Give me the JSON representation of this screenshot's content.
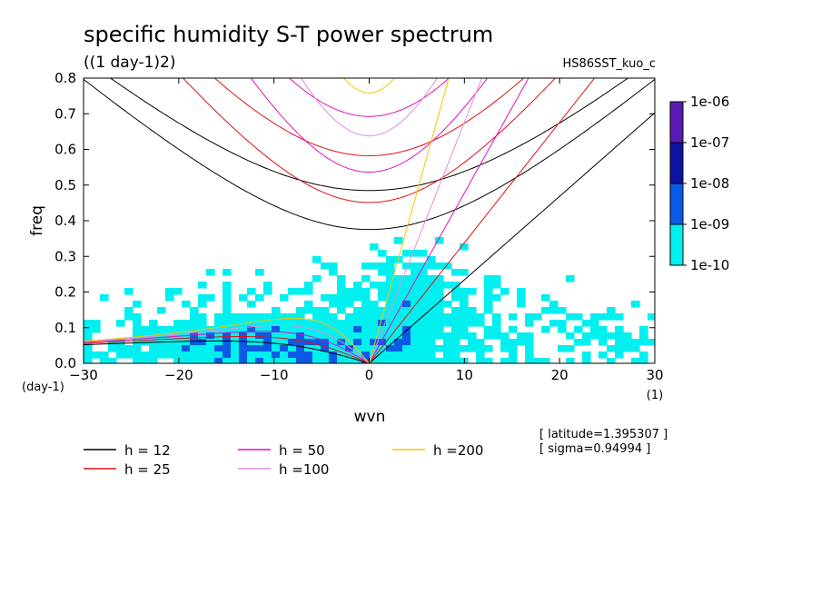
{
  "chart_data": {
    "type": "heatmap",
    "title": "specific humidity S-T power spectrum",
    "subtitle": "((1 day-1)2)",
    "run_label": "HS86SST_kuo_c",
    "xlabel": "wvn",
    "x_unit": "(1)",
    "ylabel": "freq",
    "y_unit": "(day-1)",
    "xlim": [
      -30,
      30
    ],
    "ylim": [
      0,
      0.8
    ],
    "x_ticks": [
      "-30",
      "-20",
      "-10",
      "0",
      "10",
      "20",
      "30"
    ],
    "y_ticks": [
      "0.0",
      "0.1",
      "0.2",
      "0.3",
      "0.4",
      "0.5",
      "0.6",
      "0.7",
      "0.8"
    ],
    "colorbar": {
      "labels": [
        "1e-06",
        "1e-07",
        "1e-08",
        "1e-09",
        "1e-10"
      ],
      "colors": [
        "#5a1ab4",
        "#0a14a0",
        "#0a5ae6",
        "#00f0f0"
      ]
    },
    "dispersion_curves": [
      {
        "name": "h = 12",
        "h": 12,
        "color": "#000000"
      },
      {
        "name": "h = 25",
        "h": 25,
        "color": "#e01010"
      },
      {
        "name": "h = 50",
        "h": 50,
        "color": "#e010c0"
      },
      {
        "name": "h =100",
        "h": 100,
        "color": "#e08ce0"
      },
      {
        "name": "h =200",
        "h": 200,
        "color": "#f0c800"
      }
    ],
    "annotations": [
      "[ latitude=1.395307 ]",
      "[ sigma=0.94994 ]"
    ]
  }
}
